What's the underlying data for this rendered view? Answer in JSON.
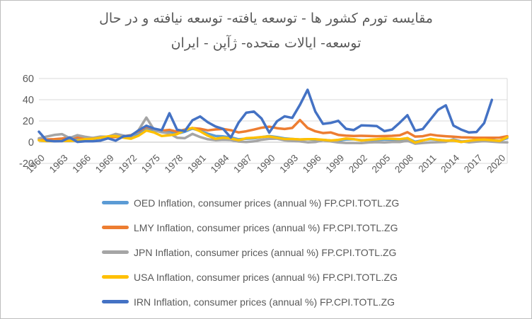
{
  "title": {
    "line1": "مقايسه تورم كشور ها - توسعه يافته- توسعه نيافته و در حال",
    "line2": "توسعه- ايالات متحده- ژآپن - ايران"
  },
  "colors": {
    "axis_text": "#595959",
    "gridline": "#d9d9d9",
    "zero_line": "#c0c0c0",
    "plot_right_border": "#d9d9d9"
  },
  "chart_data": {
    "type": "line",
    "title": "مقايسه تورم كشور ها - توسعه يافته- توسعه نيافته و در حال توسعه- ايالات متحده- ژآپن - ايران",
    "xlabel": "",
    "ylabel": "",
    "x_start": 1960,
    "x_end": 2021,
    "x": [
      1960,
      1961,
      1962,
      1963,
      1964,
      1965,
      1966,
      1967,
      1968,
      1969,
      1970,
      1971,
      1972,
      1973,
      1974,
      1975,
      1976,
      1977,
      1978,
      1979,
      1980,
      1981,
      1982,
      1983,
      1984,
      1985,
      1986,
      1987,
      1988,
      1989,
      1990,
      1991,
      1992,
      1993,
      1994,
      1995,
      1996,
      1997,
      1998,
      1999,
      2000,
      2001,
      2002,
      2003,
      2004,
      2005,
      2006,
      2007,
      2008,
      2009,
      2010,
      2011,
      2012,
      2013,
      2014,
      2015,
      2016,
      2017,
      2018,
      2019,
      2020,
      2021
    ],
    "x_tick_labels": [
      "1960",
      "1963",
      "1966",
      "1969",
      "1972",
      "1975",
      "1978",
      "1981",
      "1984",
      "1987",
      "1990",
      "1993",
      "1996",
      "1999",
      "2002",
      "2005",
      "2008",
      "2011",
      "2014",
      "2017",
      "2020"
    ],
    "ylim": [
      -20,
      60
    ],
    "y_ticks": [
      60,
      40,
      20,
      0,
      -20
    ],
    "grid": true,
    "legend_position": "bottom-left",
    "series": [
      {
        "name": "OED",
        "legend": "OED Inflation, consumer prices (annual %) FP.CPI.TOTL.ZG",
        "color": "#5b9bd5",
        "values": [
          2.0,
          1.9,
          2.3,
          2.5,
          2.4,
          2.9,
          3.2,
          3.0,
          4.0,
          4.6,
          5.3,
          5.1,
          4.7,
          7.5,
          13.4,
          11.2,
          9.4,
          9.7,
          8.0,
          9.8,
          12.8,
          10.7,
          8.0,
          5.9,
          5.5,
          4.6,
          2.7,
          3.3,
          3.6,
          4.7,
          5.7,
          4.9,
          3.6,
          3.0,
          2.5,
          2.7,
          2.3,
          2.1,
          1.6,
          1.5,
          2.5,
          2.7,
          1.9,
          2.0,
          2.1,
          2.4,
          2.4,
          2.3,
          3.7,
          0.5,
          1.8,
          2.8,
          2.2,
          1.5,
          1.7,
          0.6,
          1.1,
          2.2,
          2.5,
          2.0,
          1.3,
          3.9
        ]
      },
      {
        "name": "LMY",
        "legend": "LMY Inflation, consumer prices (annual %) FP.CPI.TOTL.ZG",
        "color": "#ed7d31",
        "values": [
          2.8,
          2.6,
          2.9,
          3.4,
          4.4,
          4.6,
          4.4,
          4.0,
          4.2,
          4.7,
          4.9,
          5.6,
          6.6,
          10.2,
          14.6,
          12.3,
          10.9,
          11.6,
          9.9,
          11.9,
          13.3,
          12.6,
          11.1,
          12.0,
          12.4,
          11.3,
          9.2,
          10.3,
          11.9,
          13.6,
          14.6,
          13.2,
          12.4,
          13.4,
          20.9,
          13.4,
          10.3,
          8.6,
          9.2,
          6.9,
          6.1,
          5.9,
          6.0,
          5.9,
          5.6,
          5.7,
          6.0,
          6.5,
          9.4,
          5.3,
          5.6,
          7.2,
          6.1,
          5.6,
          5.1,
          4.6,
          4.4,
          4.1,
          4.1,
          4.2,
          4.3,
          5.6
        ]
      },
      {
        "name": "JPN",
        "legend": "JPN Inflation, consumer prices (annual %) FP.CPI.TOTL.ZG",
        "color": "#a5a5a5",
        "values": [
          3.6,
          5.3,
          6.8,
          7.6,
          3.9,
          6.6,
          5.1,
          4.0,
          5.3,
          5.2,
          7.7,
          6.3,
          4.9,
          11.6,
          23.2,
          11.7,
          9.4,
          8.2,
          4.2,
          3.7,
          7.8,
          4.9,
          2.7,
          1.9,
          2.3,
          2.0,
          0.6,
          0.1,
          0.7,
          2.3,
          3.1,
          3.3,
          1.7,
          1.3,
          0.7,
          -0.1,
          0.1,
          1.7,
          0.7,
          -0.3,
          -0.7,
          -0.7,
          -0.9,
          -0.3,
          0.0,
          -0.3,
          0.2,
          0.1,
          1.4,
          -1.4,
          -0.7,
          -0.3,
          0.0,
          0.3,
          2.8,
          0.8,
          -0.1,
          0.5,
          1.0,
          0.5,
          0.0,
          -0.2
        ]
      },
      {
        "name": "USA",
        "legend": "USA Inflation, consumer prices (annual %) FP.CPI.TOTL.ZG",
        "color": "#ffc000",
        "values": [
          1.7,
          1.0,
          1.0,
          1.3,
          1.3,
          1.6,
          2.9,
          3.1,
          4.2,
          5.5,
          5.8,
          4.3,
          3.3,
          6.2,
          11.0,
          9.1,
          5.8,
          6.5,
          7.6,
          11.3,
          13.5,
          10.3,
          6.1,
          3.2,
          4.3,
          3.5,
          1.9,
          3.7,
          4.1,
          4.8,
          5.4,
          4.2,
          3.0,
          3.0,
          2.6,
          2.8,
          2.9,
          2.3,
          1.6,
          2.2,
          3.4,
          2.8,
          1.6,
          2.3,
          2.7,
          3.4,
          3.2,
          2.9,
          3.8,
          -0.4,
          1.6,
          3.2,
          2.1,
          1.5,
          1.6,
          0.1,
          1.3,
          2.1,
          2.4,
          1.8,
          1.2,
          4.7
        ]
      },
      {
        "name": "IRN",
        "legend": "IRN Inflation, consumer prices (annual %) FP.CPI.TOTL.ZG",
        "color": "#4472c4",
        "values": [
          9.9,
          1.6,
          0.9,
          1.0,
          4.5,
          0.3,
          0.8,
          0.8,
          1.5,
          3.6,
          1.5,
          5.5,
          6.3,
          11.2,
          15.5,
          12.8,
          11.3,
          27.3,
          11.7,
          10.5,
          20.6,
          24.2,
          18.7,
          14.8,
          12.5,
          4.4,
          18.4,
          27.7,
          28.9,
          22.3,
          9.0,
          19.6,
          24.4,
          22.9,
          35.2,
          49.4,
          28.9,
          17.3,
          18.1,
          20.1,
          12.6,
          11.4,
          15.8,
          15.6,
          15.2,
          10.4,
          11.9,
          18.4,
          25.4,
          10.8,
          12.4,
          21.5,
          30.5,
          34.7,
          15.6,
          11.9,
          9.1,
          9.6,
          18.0,
          39.9,
          null,
          null
        ]
      }
    ]
  }
}
